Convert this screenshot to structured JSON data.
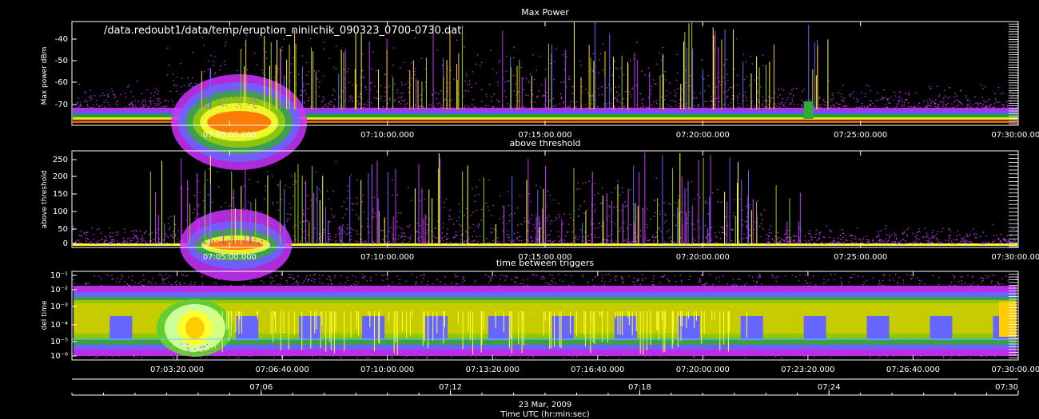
{
  "chart_data": [
    {
      "type": "scatter",
      "title": "Max Power",
      "annotation": "/data.redoubt1/data/temp/eruption_ninilchik_090323_0700-0730.dat",
      "ylabel": "Max power dBm",
      "yticks": [
        "-40",
        "-50",
        "-60",
        "-70"
      ],
      "ylim": [
        -78,
        -33
      ],
      "xticks": [
        "07:05:00.000",
        "07:10:00.000",
        "07:15:00.000",
        "07:20:00.000",
        "07:25:00.000",
        "07:30:00.000"
      ],
      "xlim_min": [
        0,
        30
      ],
      "series": [
        {
          "x_min": [
            0,
            2.4,
            4.0,
            5.5,
            7.0,
            10.0,
            14.0,
            18.0,
            20.0,
            22.0,
            25.0,
            30.0
          ],
          "y": [
            -76,
            -76,
            -72,
            -68,
            -74,
            -73,
            -73,
            -74,
            -75,
            -74,
            -76,
            -76
          ]
        }
      ]
    },
    {
      "type": "scatter",
      "title": "above threshold",
      "ylabel": "above threshold",
      "yticks": [
        "250",
        "200",
        "150",
        "100",
        "50",
        "0"
      ],
      "ylim": [
        -8,
        262
      ],
      "xticks": [
        "07:05:00.000",
        "07:10:00.000",
        "07:15:00.000",
        "07:20:00.000",
        "07:25:00.000",
        "07:30:00.000"
      ],
      "xlim_min": [
        0,
        30
      ],
      "series": [
        {
          "x_min": [
            0,
            2.5,
            4.0,
            5.0,
            7.0,
            10.0,
            14.0,
            18.0,
            22.0,
            25.0,
            30.0
          ],
          "y": [
            0,
            5,
            40,
            30,
            20,
            25,
            15,
            10,
            8,
            2,
            2
          ]
        }
      ]
    },
    {
      "type": "scatter",
      "title": "time between triggers",
      "ylabel": "del time",
      "yscale": "log",
      "yticks": [
        "10⁻¹",
        "10⁻²",
        "10⁻³",
        "10⁻⁴",
        "10⁻⁵",
        "10⁻⁶"
      ],
      "ylim": [
        -6.2,
        -1
      ],
      "xticks": [
        "07:03:20.000",
        "07:06:40.000",
        "07:10:00.000",
        "07:13:20.000",
        "07:16:40.000",
        "07:20:00.000",
        "07:23:20.000",
        "07:26:40.000",
        "07:30:00.000"
      ],
      "xlim_min": [
        0,
        30
      ],
      "bottom_axis_ticks": [
        "07:06",
        "07:12",
        "07:18",
        "07:24",
        "07:30"
      ],
      "date": "23 Mar, 2009",
      "xlabel": "Time UTC (hr:min:sec)"
    }
  ],
  "colors": {
    "background": "#000000",
    "axis": "#ffffff",
    "palette": [
      "#cc33ff",
      "#6666ff",
      "#3366cc",
      "#33aa33",
      "#99cc00",
      "#cccc00",
      "#ffff33",
      "#ffcc00",
      "#ff6600",
      "#ff0000",
      "#ccff99"
    ]
  }
}
